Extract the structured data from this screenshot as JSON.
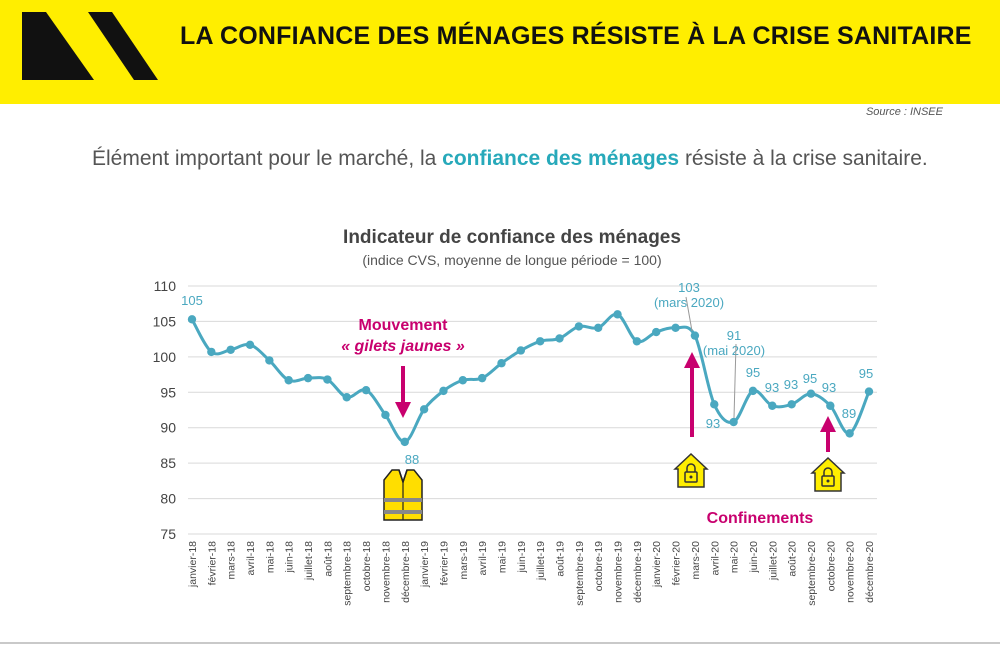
{
  "banner": {
    "title": "LA CONFIANCE DES MÉNAGES RÉSISTE À LA CRISE SANITAIRE",
    "logo_icon": "double-chevron-logo-icon",
    "background": "#ffee00"
  },
  "source": "Source : INSEE",
  "intro": {
    "before": "Élément important pour le marché, la ",
    "highlight": "confiance des ménages",
    "after": " résiste à la crise sanitaire."
  },
  "chart_data": {
    "type": "line",
    "title": "Indicateur de confiance des ménages",
    "subtitle": "(indice CVS, moyenne de longue période = 100)",
    "xlabel": "",
    "ylabel": "",
    "ylim": [
      75,
      110
    ],
    "yticks": [
      75,
      80,
      85,
      90,
      95,
      100,
      105,
      110
    ],
    "grid": "horizontal",
    "legend": "none",
    "series_color": "#4aa8c0",
    "categories": [
      "janvier-18",
      "février-18",
      "mars-18",
      "avril-18",
      "mai-18",
      "juin-18",
      "juillet-18",
      "août-18",
      "septembre-18",
      "octobre-18",
      "novembre-18",
      "décembre-18",
      "janvier-19",
      "février-19",
      "mars-19",
      "avril-19",
      "mai-19",
      "juin-19",
      "juillet-19",
      "août-19",
      "septembre-19",
      "octobre-19",
      "novembre-19",
      "décembre-19",
      "janvier-20",
      "février-20",
      "mars-20",
      "avril-20",
      "mai-20",
      "juin-20",
      "juillet-20",
      "août-20",
      "septembre-20",
      "octobre-20",
      "novembre-20",
      "décembre-20"
    ],
    "series": [
      {
        "values": [
          105.3,
          100.7,
          101.0,
          101.7,
          99.5,
          96.7,
          97.0,
          96.8,
          94.3,
          95.3,
          91.8,
          88.0,
          92.6,
          95.2,
          96.7,
          97.0,
          99.1,
          100.9,
          102.2,
          102.6,
          104.3,
          104.1,
          106.0,
          102.2,
          103.5,
          104.1,
          103.0,
          93.3,
          90.8,
          95.2,
          93.1,
          93.3,
          94.8,
          93.1,
          89.2,
          95.1
        ]
      }
    ],
    "data_labels": [
      {
        "index": 0,
        "text": "105"
      },
      {
        "index": 11,
        "text": "88"
      },
      {
        "index": 26,
        "text": "103",
        "note": "(mars 2020)"
      },
      {
        "index": 27,
        "text": "93"
      },
      {
        "index": 28,
        "text": "91",
        "note": "(mai 2020)"
      },
      {
        "index": 29,
        "text": "95"
      },
      {
        "index": 30,
        "text": "93"
      },
      {
        "index": 31,
        "text": "93"
      },
      {
        "index": 32,
        "text": "95"
      },
      {
        "index": 33,
        "text": "93"
      },
      {
        "index": 34,
        "text": "89"
      },
      {
        "index": 35,
        "text": "95"
      }
    ],
    "annotations": {
      "gilets_line1": "Mouvement",
      "gilets_line2": "« gilets jaunes »",
      "confinements": "Confinements",
      "annotation_color": "#c8006e",
      "vest_icon": "yellow-vest-icon",
      "lock_icon": "house-padlock-icon"
    }
  }
}
